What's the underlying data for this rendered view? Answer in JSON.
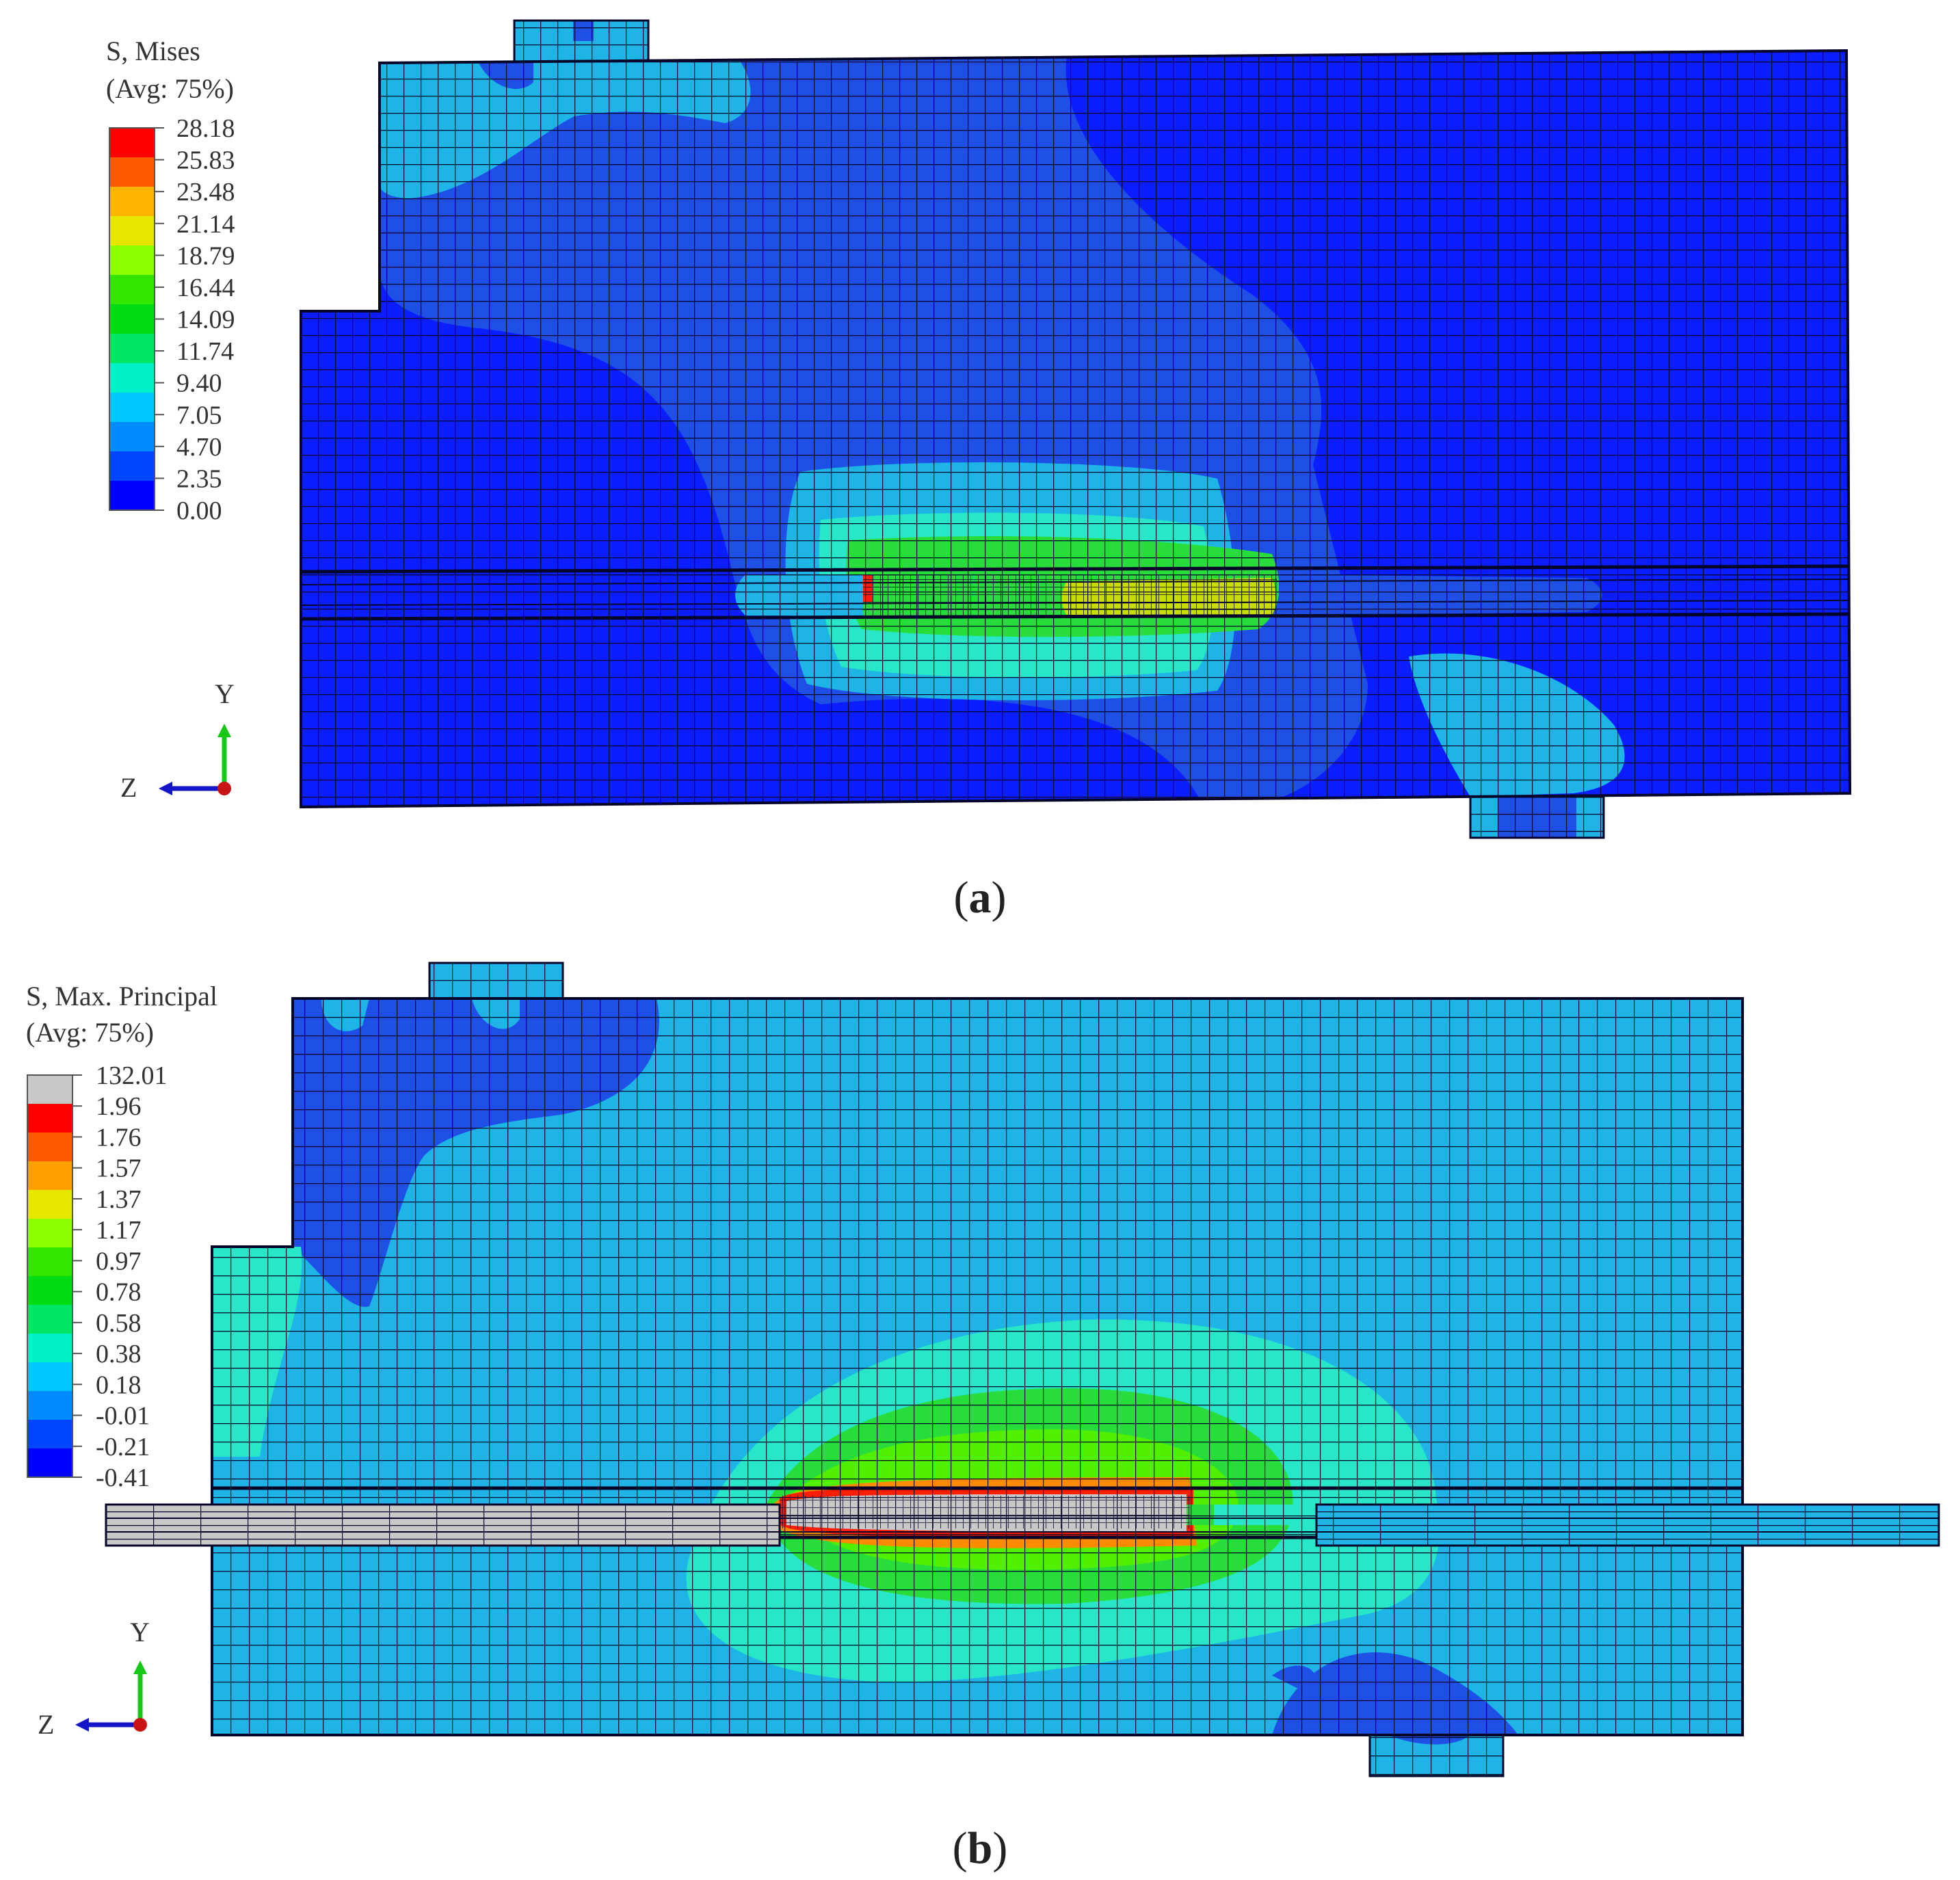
{
  "panels": [
    {
      "id": "a",
      "caption": "a",
      "legend": {
        "title_line1": "S, Mises",
        "title_line2": "(Avg: 75%)",
        "labels": [
          "28.18",
          "25.83",
          "23.48",
          "21.14",
          "18.79",
          "16.44",
          "14.09",
          "11.74",
          "9.40",
          "7.05",
          "4.70",
          "2.35",
          "0.00"
        ],
        "colors": [
          "#ff0000",
          "#ff5a00",
          "#ffb400",
          "#e6e600",
          "#8cff00",
          "#32e600",
          "#00dc14",
          "#00e664",
          "#00f0c8",
          "#00c8ff",
          "#008cff",
          "#0046ff",
          "#0000ff"
        ]
      },
      "triad": {
        "up": "Y",
        "left": "Z"
      }
    },
    {
      "id": "b",
      "caption": "b",
      "legend": {
        "title_line1": "S, Max. Principal",
        "title_line2": "(Avg: 75%)",
        "labels": [
          "132.01",
          "1.96",
          "1.76",
          "1.57",
          "1.37",
          "1.17",
          "0.97",
          "0.78",
          "0.58",
          "0.38",
          "0.18",
          "-0.01",
          "-0.21",
          "-0.41"
        ],
        "colors": [
          "#c8c8c8",
          "#ff0000",
          "#ff5a00",
          "#ffa000",
          "#e6e600",
          "#8cff00",
          "#32e600",
          "#00dc14",
          "#00e664",
          "#00f0c8",
          "#00c8ff",
          "#008cff",
          "#0046ff",
          "#0000ff"
        ]
      },
      "triad": {
        "up": "Y",
        "left": "Z"
      }
    }
  ],
  "colors": {
    "mesh_line": "#0a0a28",
    "blue_dark": "#0a1eff",
    "blue_mid": "#1e50e6",
    "cyan": "#1eb4e6",
    "aqua": "#28e6c8",
    "green": "#28dc3c",
    "yellow": "#c8dc00",
    "red": "#ff1e00",
    "grey": "#c8c8c8"
  }
}
